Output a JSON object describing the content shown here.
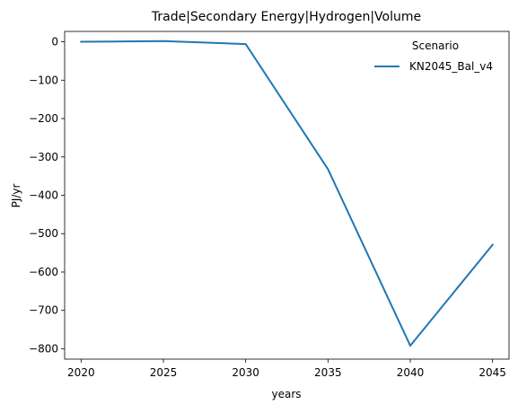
{
  "chart_data": {
    "type": "line",
    "title": "Trade|Secondary Energy|Hydrogen|Volume",
    "xlabel": "years",
    "ylabel": "PJ/yr",
    "x": [
      2020,
      2025,
      2030,
      2035,
      2040,
      2045
    ],
    "xticks": [
      "2020",
      "2025",
      "2030",
      "2035",
      "2040",
      "2045"
    ],
    "yticks": [
      0,
      -100,
      -200,
      -300,
      -400,
      -500,
      -600,
      -700,
      -800
    ],
    "ytick_labels": [
      "0",
      "−100",
      "−200",
      "−300",
      "−400",
      "−500",
      "−600",
      "−700",
      "−800"
    ],
    "xlim": [
      2019,
      2046
    ],
    "ylim": [
      -827,
      27
    ],
    "grid": false,
    "legend": {
      "title": "Scenario",
      "placement": "top-right"
    },
    "series": [
      {
        "name": "KN2045_Bal_v4",
        "color": "#1f77b4",
        "values": [
          0,
          2,
          -6,
          -332,
          -792,
          -529
        ]
      }
    ]
  }
}
